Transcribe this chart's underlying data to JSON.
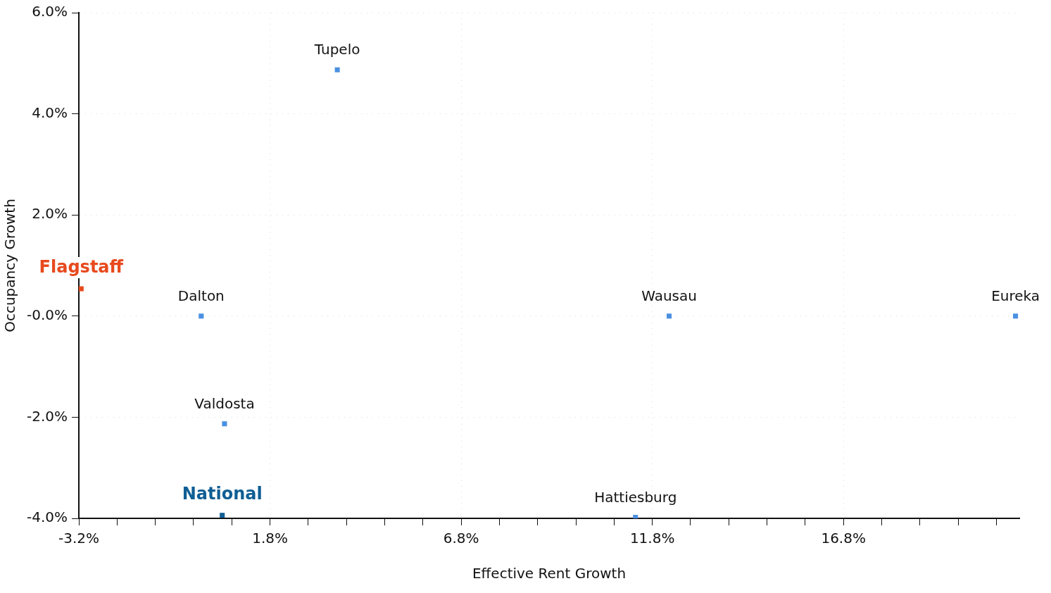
{
  "chart_data": {
    "type": "scatter",
    "xlabel": "Effective Rent Growth",
    "ylabel": "Occupancy Growth",
    "series": [
      {
        "name": "Tupelo",
        "color": "#4a90e2",
        "x": [
          3.56
        ],
        "values": [
          4.87
        ]
      },
      {
        "name": "Flagstaff",
        "color": "#e8491d",
        "x": [
          -3.14
        ],
        "values": [
          0.54
        ]
      },
      {
        "name": "Dalton",
        "color": "#4a90e2",
        "x": [
          0.0
        ],
        "values": [
          0.0
        ]
      },
      {
        "name": "Wausau",
        "color": "#4a90e2",
        "x": [
          12.24
        ],
        "values": [
          0.0
        ]
      },
      {
        "name": "Eureka",
        "color": "#4a90e2",
        "x": [
          21.3
        ],
        "values": [
          0.0
        ]
      },
      {
        "name": "Valdosta",
        "color": "#4a90e2",
        "x": [
          0.61
        ],
        "values": [
          -2.13
        ]
      },
      {
        "name": "National",
        "color": "#0f5e94",
        "x": [
          0.55
        ],
        "values": [
          -3.94
        ]
      },
      {
        "name": "Hattiesburg",
        "color": "#4a90e2",
        "x": [
          11.36
        ],
        "values": [
          -3.98
        ]
      }
    ],
    "xlim": [
      -3.2,
      21.4
    ],
    "xticks": [
      {
        "value": -3.2,
        "label": "-3.2%"
      },
      {
        "value": -2.2,
        "label": null
      },
      {
        "value": -1.2,
        "label": null
      },
      {
        "value": -0.2,
        "label": null
      },
      {
        "value": 0.8,
        "label": null
      },
      {
        "value": 1.8,
        "label": "1.8%"
      },
      {
        "value": 2.8,
        "label": null
      },
      {
        "value": 3.8,
        "label": null
      },
      {
        "value": 4.8,
        "label": null
      },
      {
        "value": 5.8,
        "label": null
      },
      {
        "value": 6.8,
        "label": "6.8%"
      },
      {
        "value": 7.8,
        "label": null
      },
      {
        "value": 8.8,
        "label": null
      },
      {
        "value": 9.8,
        "label": null
      },
      {
        "value": 10.8,
        "label": null
      },
      {
        "value": 11.8,
        "label": "11.8%"
      },
      {
        "value": 12.8,
        "label": null
      },
      {
        "value": 13.8,
        "label": null
      },
      {
        "value": 14.8,
        "label": null
      },
      {
        "value": 15.8,
        "label": null
      },
      {
        "value": 16.8,
        "label": "16.8%"
      },
      {
        "value": 17.8,
        "label": null
      },
      {
        "value": 18.8,
        "label": null
      },
      {
        "value": 19.8,
        "label": null
      },
      {
        "value": 20.8,
        "label": null
      }
    ],
    "ylim": [
      -4,
      6
    ],
    "yticks": [
      {
        "value": -4,
        "label": "-4.0%"
      },
      {
        "value": -2,
        "label": "-2.0%"
      },
      {
        "value": 0,
        "label": "-0.0%"
      },
      {
        "value": 2,
        "label": "2.0%"
      },
      {
        "value": 4,
        "label": "4.0%"
      },
      {
        "value": 6,
        "label": "6.0%"
      }
    ],
    "grid": true,
    "legend": false,
    "marker": "square"
  }
}
